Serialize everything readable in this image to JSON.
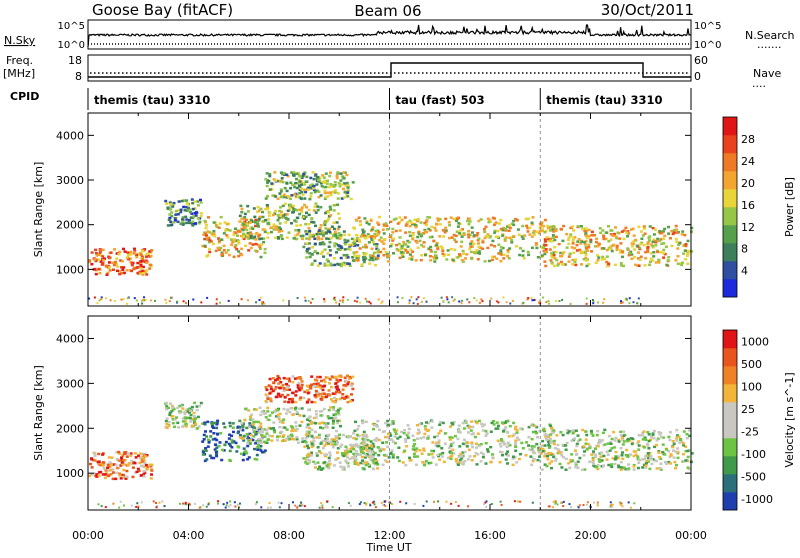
{
  "header": {
    "station": "Goose Bay (fitACF)",
    "beam": "Beam 06",
    "date": "30/Oct/2011"
  },
  "strips": {
    "nsky_label": "N.Sky",
    "nsearch_label": "N.Search",
    "nsky_ticks": [
      "10^5",
      "10^0"
    ],
    "nsearch_ticks": [
      "10^5",
      "10^0"
    ],
    "freq_label_1": "Freq.",
    "freq_label_2": "[MHz]",
    "freq_ticks": [
      "18",
      "8"
    ],
    "nave_label": "Nave",
    "nave_ticks": [
      "60",
      "0"
    ],
    "cpid_label": "CPID",
    "cpid_segments": [
      {
        "label": "themis (tau) 3310",
        "start_h": 0
      },
      {
        "label": "tau (fast) 503",
        "start_h": 12
      },
      {
        "label": "themis (tau) 3310",
        "start_h": 18
      }
    ]
  },
  "chart_data": [
    {
      "type": "heatmap",
      "title": "",
      "xlabel": "Time UT",
      "ylabel": "Slant Range [km]",
      "xlim": [
        0,
        24
      ],
      "ylim": [
        180,
        4500
      ],
      "x_ticks": [
        "00:00",
        "04:00",
        "08:00",
        "12:00",
        "16:00",
        "20:00",
        "00:00"
      ],
      "y_ticks": [
        1000,
        2000,
        3000,
        4000
      ],
      "colorbar": {
        "label": "Power [dB]",
        "ticks": [
          "28",
          "24",
          "20",
          "16",
          "12",
          "8",
          "4"
        ],
        "colors": [
          "#1c2adb",
          "#2f4fa0",
          "#3d7f5a",
          "#56a04c",
          "#95c648",
          "#e8d53a",
          "#f2a531",
          "#ef7a25",
          "#e8431e",
          "#e01515"
        ]
      },
      "echo_bands": [
        {
          "t0": 0.0,
          "t1": 2.5,
          "r0": 900,
          "r1": 1500,
          "level": 0.75
        },
        {
          "t0": 3.0,
          "t1": 4.5,
          "r0": 2000,
          "r1": 2600,
          "level": 0.3
        },
        {
          "t0": 4.5,
          "t1": 7.0,
          "r0": 1300,
          "r1": 2200,
          "level": 0.6
        },
        {
          "t0": 6.0,
          "t1": 10.0,
          "r0": 1700,
          "r1": 2500,
          "level": 0.45
        },
        {
          "t0": 7.0,
          "t1": 10.5,
          "r0": 2600,
          "r1": 3200,
          "level": 0.4
        },
        {
          "t0": 8.5,
          "t1": 11.5,
          "r0": 1100,
          "r1": 1900,
          "level": 0.35
        },
        {
          "t0": 10.5,
          "t1": 18.5,
          "r0": 1200,
          "r1": 2200,
          "level": 0.55
        },
        {
          "t0": 18.0,
          "t1": 24.0,
          "r0": 1100,
          "r1": 2000,
          "level": 0.6
        }
      ]
    },
    {
      "type": "heatmap",
      "title": "",
      "xlabel": "Time UT",
      "ylabel": "Slant Range [km]",
      "xlim": [
        0,
        24
      ],
      "ylim": [
        180,
        4500
      ],
      "x_ticks": [
        "00:00",
        "04:00",
        "08:00",
        "12:00",
        "16:00",
        "20:00",
        "00:00"
      ],
      "y_ticks": [
        1000,
        2000,
        3000,
        4000
      ],
      "colorbar": {
        "label": "Velocity [m s^-1]",
        "ticks": [
          "1000",
          "500",
          "100",
          "25",
          "-25",
          "-100",
          "-500",
          "-1000"
        ],
        "colors": [
          "#1f3fae",
          "#2b6f7a",
          "#3f9a4a",
          "#6cc443",
          "#c8c7c0",
          "#c8c7c0",
          "#f2b53a",
          "#ef8226",
          "#e8561e",
          "#e01515"
        ]
      },
      "echo_bands": [
        {
          "t0": 0.0,
          "t1": 2.5,
          "r0": 900,
          "r1": 1500,
          "level": 0.75
        },
        {
          "t0": 3.0,
          "t1": 4.5,
          "r0": 2000,
          "r1": 2600,
          "level": 0.45
        },
        {
          "t0": 4.5,
          "t1": 7.0,
          "r0": 1300,
          "r1": 2200,
          "level": 0.15
        },
        {
          "t0": 6.0,
          "t1": 10.0,
          "r0": 1700,
          "r1": 2500,
          "level": 0.45
        },
        {
          "t0": 7.0,
          "t1": 10.5,
          "r0": 2600,
          "r1": 3200,
          "level": 0.8
        },
        {
          "t0": 8.5,
          "t1": 11.5,
          "r0": 1100,
          "r1": 1900,
          "level": 0.45
        },
        {
          "t0": 10.5,
          "t1": 18.5,
          "r0": 1200,
          "r1": 2200,
          "level": 0.45
        },
        {
          "t0": 18.0,
          "t1": 24.0,
          "r0": 1100,
          "r1": 2000,
          "level": 0.45
        }
      ]
    }
  ]
}
